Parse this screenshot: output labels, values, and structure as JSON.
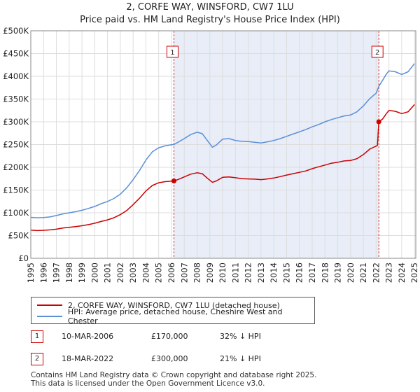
{
  "title_line1": "2, CORFE WAY, WINSFORD, CW7 1LU",
  "title_line2": "Price paid vs. HM Land Registry's House Price Index (HPI)",
  "chart_data": {
    "type": "line",
    "xlim": [
      1995,
      2025.1
    ],
    "ylim": [
      0,
      500000
    ],
    "y_ticks": [
      {
        "value": 0,
        "label": "£0"
      },
      {
        "value": 50000,
        "label": "£50K"
      },
      {
        "value": 100000,
        "label": "£100K"
      },
      {
        "value": 150000,
        "label": "£150K"
      },
      {
        "value": 200000,
        "label": "£200K"
      },
      {
        "value": 250000,
        "label": "£250K"
      },
      {
        "value": 300000,
        "label": "£300K"
      },
      {
        "value": 350000,
        "label": "£350K"
      },
      {
        "value": 400000,
        "label": "£400K"
      },
      {
        "value": 450000,
        "label": "£450K"
      },
      {
        "value": 500000,
        "label": "£500K"
      }
    ],
    "x_ticks": [
      "1995",
      "1996",
      "1997",
      "1998",
      "1999",
      "2000",
      "2001",
      "2002",
      "2003",
      "2004",
      "2005",
      "2006",
      "2007",
      "2008",
      "2009",
      "2010",
      "2011",
      "2012",
      "2013",
      "2014",
      "2015",
      "2016",
      "2017",
      "2018",
      "2019",
      "2020",
      "2021",
      "2022",
      "2023",
      "2024",
      "2025"
    ],
    "grid": true,
    "highlight_range": [
      2006.19,
      2022.21
    ],
    "series": [
      {
        "name": "2, CORFE WAY, WINSFORD, CW7 1LU (detached house)",
        "color": "#cc0000",
        "points": [
          [
            1995,
            62000
          ],
          [
            1995.5,
            61000
          ],
          [
            1996,
            61500
          ],
          [
            1996.5,
            62500
          ],
          [
            1997,
            64000
          ],
          [
            1997.5,
            66500
          ],
          [
            1998,
            68000
          ],
          [
            1998.5,
            69500
          ],
          [
            1999,
            71500
          ],
          [
            1999.5,
            74000
          ],
          [
            2000,
            77000
          ],
          [
            2000.5,
            81000
          ],
          [
            2001,
            84500
          ],
          [
            2001.5,
            89000
          ],
          [
            2002,
            96000
          ],
          [
            2002.5,
            105000
          ],
          [
            2003,
            118000
          ],
          [
            2003.5,
            132000
          ],
          [
            2004,
            148000
          ],
          [
            2004.5,
            160000
          ],
          [
            2005,
            166000
          ],
          [
            2005.5,
            168500
          ],
          [
            2006,
            169500
          ],
          [
            2006.19,
            170000
          ],
          [
            2006.5,
            173000
          ],
          [
            2007,
            179000
          ],
          [
            2007.5,
            185000
          ],
          [
            2008,
            188000
          ],
          [
            2008.4,
            186000
          ],
          [
            2008.8,
            176000
          ],
          [
            2009.2,
            167000
          ],
          [
            2009.5,
            170000
          ],
          [
            2010,
            178000
          ],
          [
            2010.5,
            179000
          ],
          [
            2011,
            177000
          ],
          [
            2011.5,
            175000
          ],
          [
            2012,
            174500
          ],
          [
            2012.5,
            174000
          ],
          [
            2013,
            173000
          ],
          [
            2013.5,
            174500
          ],
          [
            2014,
            176500
          ],
          [
            2014.5,
            179500
          ],
          [
            2015,
            183000
          ],
          [
            2015.5,
            186000
          ],
          [
            2016,
            189000
          ],
          [
            2016.5,
            192000
          ],
          [
            2017,
            197000
          ],
          [
            2017.5,
            201000
          ],
          [
            2018,
            205000
          ],
          [
            2018.5,
            209000
          ],
          [
            2019,
            211000
          ],
          [
            2019.5,
            214000
          ],
          [
            2020,
            215000
          ],
          [
            2020.5,
            219000
          ],
          [
            2021,
            228000
          ],
          [
            2021.5,
            240000
          ],
          [
            2022.1,
            248000
          ],
          [
            2022.21,
            300000
          ],
          [
            2022.5,
            306000
          ],
          [
            2022.8,
            318000
          ],
          [
            2023,
            325000
          ],
          [
            2023.5,
            323000
          ],
          [
            2024,
            318000
          ],
          [
            2024.5,
            322000
          ],
          [
            2025,
            338000
          ]
        ]
      },
      {
        "name": "HPI: Average price, detached house, Cheshire West and Chester",
        "color": "#5b8fd6",
        "points": [
          [
            1995,
            90000
          ],
          [
            1995.5,
            89000
          ],
          [
            1996,
            89500
          ],
          [
            1996.5,
            91000
          ],
          [
            1997,
            94000
          ],
          [
            1997.5,
            97500
          ],
          [
            1998,
            100000
          ],
          [
            1998.5,
            102500
          ],
          [
            1999,
            105500
          ],
          [
            1999.5,
            109500
          ],
          [
            2000,
            114000
          ],
          [
            2000.5,
            120000
          ],
          [
            2001,
            125000
          ],
          [
            2001.5,
            131500
          ],
          [
            2002,
            141000
          ],
          [
            2002.5,
            155000
          ],
          [
            2003,
            173000
          ],
          [
            2003.5,
            193000
          ],
          [
            2004,
            216000
          ],
          [
            2004.5,
            234000
          ],
          [
            2005,
            243000
          ],
          [
            2005.5,
            247000
          ],
          [
            2006,
            249500
          ],
          [
            2006.19,
            250000
          ],
          [
            2006.5,
            255000
          ],
          [
            2007,
            263000
          ],
          [
            2007.5,
            272000
          ],
          [
            2008,
            277000
          ],
          [
            2008.4,
            274000
          ],
          [
            2008.8,
            259000
          ],
          [
            2009.2,
            244000
          ],
          [
            2009.5,
            249000
          ],
          [
            2010,
            262000
          ],
          [
            2010.5,
            263000
          ],
          [
            2011,
            259000
          ],
          [
            2011.5,
            257000
          ],
          [
            2012,
            256500
          ],
          [
            2012.5,
            255000
          ],
          [
            2013,
            253500
          ],
          [
            2013.5,
            256000
          ],
          [
            2014,
            259000
          ],
          [
            2014.5,
            263000
          ],
          [
            2015,
            268000
          ],
          [
            2015.5,
            273000
          ],
          [
            2016,
            278000
          ],
          [
            2016.5,
            283000
          ],
          [
            2017,
            289000
          ],
          [
            2017.5,
            294000
          ],
          [
            2018,
            300000
          ],
          [
            2018.5,
            305000
          ],
          [
            2019,
            309000
          ],
          [
            2019.5,
            313000
          ],
          [
            2020,
            315000
          ],
          [
            2020.5,
            322000
          ],
          [
            2021,
            335000
          ],
          [
            2021.5,
            351000
          ],
          [
            2022,
            363000
          ],
          [
            2022.21,
            378000
          ],
          [
            2022.5,
            391000
          ],
          [
            2022.8,
            405000
          ],
          [
            2023,
            412000
          ],
          [
            2023.5,
            410000
          ],
          [
            2024,
            404000
          ],
          [
            2024.5,
            410000
          ],
          [
            2025,
            428000
          ]
        ]
      }
    ],
    "sales": [
      {
        "marker": "1",
        "x": 2006.19,
        "value": 170000
      },
      {
        "marker": "2",
        "x": 2022.21,
        "value": 300000
      }
    ]
  },
  "legend": {
    "property_label": "2, CORFE WAY, WINSFORD, CW7 1LU (detached house)",
    "hpi_label": "HPI: Average price, detached house, Cheshire West and Chester",
    "property_color": "#cc0000",
    "hpi_color": "#5b8fd6"
  },
  "sales_table": [
    {
      "num": "1",
      "date": "10-MAR-2006",
      "price": "£170,000",
      "hpi": "32% ↓ HPI"
    },
    {
      "num": "2",
      "date": "18-MAR-2022",
      "price": "£300,000",
      "hpi": "21% ↓ HPI"
    }
  ],
  "footer": {
    "line1": "Contains HM Land Registry data © Crown copyright and database right 2025.",
    "line2": "This data is licensed under the Open Government Licence v3.0."
  }
}
